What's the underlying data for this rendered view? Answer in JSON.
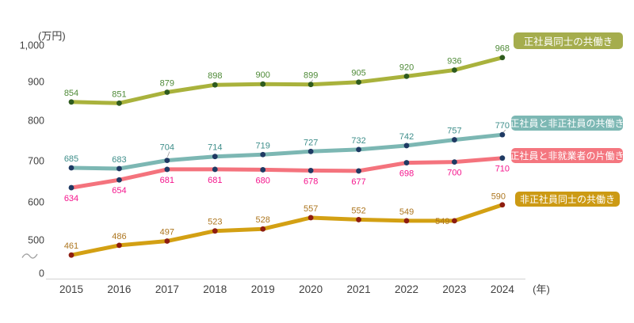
{
  "chart_data": {
    "type": "line",
    "unit_label": "(万円)",
    "xaxis_label": "(年)",
    "x": [
      "2015",
      "2016",
      "2017",
      "2018",
      "2019",
      "2020",
      "2021",
      "2022",
      "2023",
      "2024"
    ],
    "yticks": [
      "1,000",
      "900",
      "800",
      "700",
      "600",
      "500",
      "0"
    ],
    "axis_break": true,
    "series": [
      {
        "name": "正社員同士の共働き",
        "values": [
          854,
          851,
          879,
          898,
          900,
          899,
          905,
          920,
          936,
          968
        ],
        "color": "#a9b23c",
        "dot_color": "#2e5b1e",
        "label_color": "#4e8a37",
        "badge_color": "#a5ad4d"
      },
      {
        "name": "正社員と非正社員の共働き",
        "values": [
          685,
          683,
          704,
          714,
          719,
          727,
          732,
          742,
          757,
          770
        ],
        "color": "#7cb7b3",
        "dot_color": "#1f3a63",
        "label_color": "#3e8e8a",
        "badge_color": "#7db8b4"
      },
      {
        "name": "正社員と非就業者の片働き",
        "values": [
          634,
          654,
          681,
          681,
          680,
          678,
          677,
          698,
          700,
          710
        ],
        "color": "#f4737d",
        "dot_color": "#1f3a63",
        "label_color": "#f5148c",
        "badge_color": "#f4767f"
      },
      {
        "name": "非正社員同士の共働き",
        "values": [
          461,
          486,
          497,
          523,
          528,
          557,
          552,
          549,
          549,
          590
        ],
        "color": "#d3a013",
        "dot_color": "#8e1d10",
        "label_color": "#ad761f",
        "badge_color": "#cc9a14"
      }
    ]
  },
  "axis_colors": {
    "tick_text": "#404040",
    "axis_line": "#d9d9d9",
    "break_mark": "#a0a0a0"
  }
}
